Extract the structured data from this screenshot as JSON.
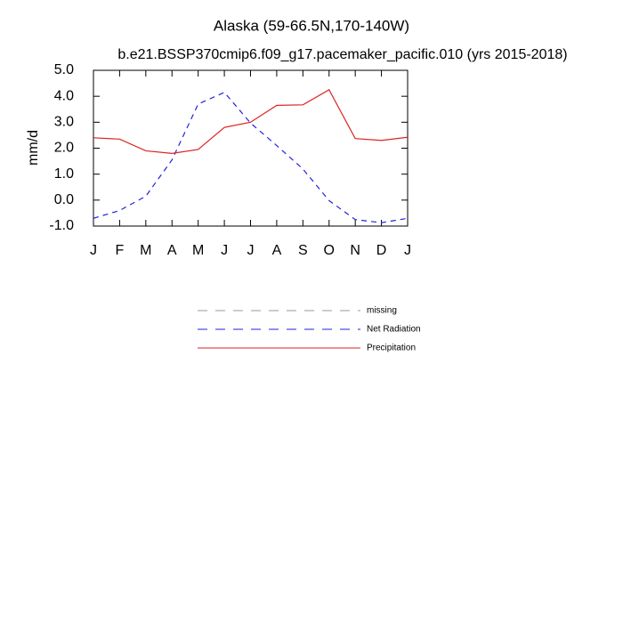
{
  "chart_data": {
    "type": "line",
    "title": "Alaska (59-66.5N,170-140W)",
    "subtitle": "b.e21.BSSP370cmip6.f09_g17.pacemaker_pacific.010 (yrs 2015-2018)",
    "ylabel": "mm/d",
    "categories": [
      "J",
      "F",
      "M",
      "A",
      "M",
      "J",
      "J",
      "A",
      "S",
      "O",
      "N",
      "D",
      "J"
    ],
    "series": [
      {
        "name": "missing",
        "color": "#999999",
        "dash": true,
        "values": [
          null,
          null,
          null,
          null,
          null,
          null,
          null,
          null,
          null,
          null,
          null,
          null,
          null
        ]
      },
      {
        "name": "Net Radiation",
        "color": "#2222dd",
        "dash": true,
        "values": [
          -0.7,
          -0.4,
          0.15,
          1.55,
          3.7,
          4.15,
          2.97,
          2.1,
          1.2,
          -0.02,
          -0.75,
          -0.87,
          -0.7
        ]
      },
      {
        "name": "Precipitation",
        "color": "#dd2222",
        "dash": false,
        "values": [
          2.4,
          2.35,
          1.9,
          1.8,
          1.95,
          2.8,
          3.0,
          3.65,
          3.67,
          4.25,
          2.37,
          2.3,
          2.42
        ]
      }
    ],
    "ylim": [
      -1,
      5
    ],
    "yticks": [
      {
        "value": -1,
        "label": "-1.0"
      },
      {
        "value": 0,
        "label": "0.0"
      },
      {
        "value": 1,
        "label": "1.0"
      },
      {
        "value": 2,
        "label": "2.0"
      },
      {
        "value": 3,
        "label": "3.0"
      },
      {
        "value": 4,
        "label": "4.0"
      },
      {
        "value": 5,
        "label": "5.0"
      }
    ],
    "grid": false
  }
}
